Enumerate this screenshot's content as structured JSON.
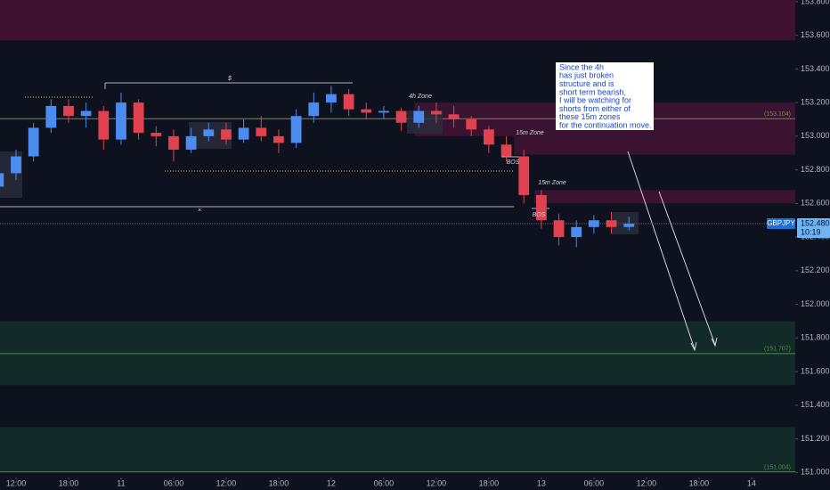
{
  "chart_data": {
    "type": "candlestick",
    "symbol": "GBPJPY",
    "last_price": {
      "value": 152.48,
      "label": "152.480"
    },
    "countdown": "10:19",
    "x": [
      -2,
      0,
      2,
      4,
      6,
      8,
      10,
      12,
      14,
      16,
      18,
      20,
      22,
      24,
      26,
      28,
      30,
      32,
      34,
      36,
      38,
      40,
      42,
      44,
      46,
      48,
      50,
      52,
      54,
      56,
      58,
      60,
      62,
      64,
      66,
      68,
      70
    ],
    "open": [
      152.7,
      152.78,
      152.88,
      153.05,
      153.18,
      153.12,
      153.15,
      152.98,
      153.2,
      153.02,
      153.0,
      152.92,
      153.0,
      153.04,
      152.98,
      153.05,
      153.0,
      152.96,
      153.12,
      153.2,
      153.25,
      153.16,
      153.14,
      153.15,
      153.08,
      153.15,
      153.13,
      153.1,
      153.04,
      152.95,
      152.88,
      152.65,
      152.5,
      152.4,
      152.46,
      152.5,
      152.46
    ],
    "high": [
      152.82,
      152.92,
      153.08,
      153.22,
      153.22,
      153.2,
      153.18,
      153.26,
      153.22,
      153.06,
      153.04,
      153.05,
      153.08,
      153.08,
      153.1,
      153.12,
      153.04,
      153.16,
      153.26,
      153.3,
      153.28,
      153.2,
      153.18,
      153.17,
      153.18,
      153.2,
      153.18,
      153.12,
      153.06,
      153.0,
      152.92,
      152.68,
      152.54,
      152.5,
      152.53,
      152.55,
      152.52
    ],
    "low": [
      152.66,
      152.74,
      152.85,
      153.02,
      153.08,
      153.05,
      152.92,
      152.95,
      152.98,
      152.94,
      152.85,
      152.9,
      152.97,
      152.95,
      152.96,
      152.97,
      152.9,
      152.93,
      153.08,
      153.14,
      153.12,
      153.1,
      153.1,
      153.03,
      153.05,
      153.08,
      153.05,
      153.0,
      152.9,
      152.85,
      152.6,
      152.45,
      152.35,
      152.34,
      152.42,
      152.42,
      152.44
    ],
    "close": [
      152.78,
      152.88,
      153.05,
      153.18,
      153.12,
      153.15,
      152.98,
      153.2,
      153.02,
      153.0,
      152.92,
      153.0,
      153.04,
      152.98,
      153.05,
      153.0,
      152.96,
      153.12,
      153.2,
      153.25,
      153.16,
      153.14,
      153.15,
      153.08,
      153.15,
      153.13,
      153.1,
      153.04,
      152.95,
      152.88,
      152.65,
      152.5,
      152.4,
      152.46,
      152.5,
      152.46,
      152.48
    ],
    "up_color": "#4c8cf0",
    "down_color": "#e0424f",
    "xlim": [
      -1.83,
      89
    ],
    "xticks": [
      {
        "value": 0,
        "label": "12:00"
      },
      {
        "value": 6,
        "label": "18:00"
      },
      {
        "value": 12,
        "label": "11"
      },
      {
        "value": 18,
        "label": "06:00"
      },
      {
        "value": 24,
        "label": "12:00"
      },
      {
        "value": 30,
        "label": "18:00"
      },
      {
        "value": 36,
        "label": "12"
      },
      {
        "value": 42,
        "label": "06:00"
      },
      {
        "value": 48,
        "label": "12:00"
      },
      {
        "value": 54,
        "label": "18:00"
      },
      {
        "value": 60,
        "label": "13"
      },
      {
        "value": 66,
        "label": "06:00"
      },
      {
        "value": 72,
        "label": "12:00"
      },
      {
        "value": 78,
        "label": "18:00"
      },
      {
        "value": 84,
        "label": "14"
      }
    ],
    "ylim": [
      150.97,
      153.81
    ],
    "yticks": [
      {
        "value": 151,
        "label": "151.000"
      },
      {
        "value": 151.2,
        "label": "151.200"
      },
      {
        "value": 151.4,
        "label": "151.400"
      },
      {
        "value": 151.6,
        "label": "151.600"
      },
      {
        "value": 151.8,
        "label": "151.800"
      },
      {
        "value": 152,
        "label": "152.000"
      },
      {
        "value": 152.2,
        "label": "152.200"
      },
      {
        "value": 152.4,
        "label": "152.400"
      },
      {
        "value": 152.6,
        "label": "152.600"
      },
      {
        "value": 152.8,
        "label": "152.800"
      },
      {
        "value": 153,
        "label": "153.000"
      },
      {
        "value": 153.2,
        "label": "153.200"
      },
      {
        "value": 153.4,
        "label": "153.400"
      },
      {
        "value": 153.6,
        "label": "153.600"
      },
      {
        "value": 153.8,
        "label": "153.800"
      }
    ],
    "zones": [
      {
        "top": 153.81,
        "bottom": 153.57,
        "color": "#3e1230"
      },
      {
        "top": 153.2,
        "bottom": 153.0,
        "from": 45.5,
        "color": "#3a1330"
      },
      {
        "top": 153.0,
        "bottom": 152.89,
        "from": 56.9,
        "color": "#3a1330"
      },
      {
        "top": 152.68,
        "bottom": 152.6,
        "from": 59.2,
        "color": "#3a1330"
      },
      {
        "top": 151.9,
        "bottom": 151.52,
        "color": "#122a28"
      },
      {
        "top": 151.27,
        "bottom": 151.0,
        "color": "#122a28"
      }
    ],
    "levels": [
      {
        "value": 153.104,
        "label": "(153.104)",
        "color": "#7d8a4a"
      },
      {
        "value": 151.707,
        "label": "(151.707)",
        "color": "#4f8a4a"
      },
      {
        "value": 151.004,
        "label": "(151.004)",
        "color": "#4f8a4a"
      }
    ],
    "annotations": [
      "4h Zone",
      "15m Zone",
      "15m Zone",
      "BOS",
      "BOS",
      "$",
      "×"
    ],
    "note": [
      "Since the 4h",
      "has just broken",
      "structure and is",
      "short term bearish,",
      "I will be watching for",
      "shorts from either of",
      "these 15m zones",
      "for the continuation move."
    ]
  }
}
